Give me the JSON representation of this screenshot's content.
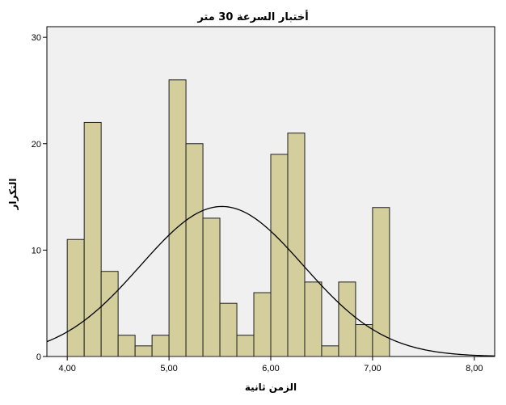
{
  "chart_data": {
    "type": "bar",
    "title": "أختبار السرعة 30 متر",
    "xlabel": "الزمن   ثانية",
    "ylabel": "التكرار",
    "xlim": [
      3.8,
      8.2
    ],
    "ylim": [
      0,
      31
    ],
    "x_ticks": [
      {
        "value": 4.0,
        "label": "4,00"
      },
      {
        "value": 5.0,
        "label": "5,00"
      },
      {
        "value": 6.0,
        "label": "6,00"
      },
      {
        "value": 7.0,
        "label": "7,00"
      },
      {
        "value": 8.0,
        "label": "8,00"
      }
    ],
    "y_ticks": [
      {
        "value": 0,
        "label": "0"
      },
      {
        "value": 10,
        "label": "10"
      },
      {
        "value": 20,
        "label": "20"
      },
      {
        "value": 30,
        "label": "30"
      }
    ],
    "bin_width": 0.1667,
    "bins": [
      {
        "start": 4.0,
        "value": 11
      },
      {
        "start": 4.1667,
        "value": 22
      },
      {
        "start": 4.3333,
        "value": 8
      },
      {
        "start": 4.5,
        "value": 2
      },
      {
        "start": 4.6667,
        "value": 1
      },
      {
        "start": 4.8333,
        "value": 2
      },
      {
        "start": 5.0,
        "value": 26
      },
      {
        "start": 5.1667,
        "value": 20
      },
      {
        "start": 5.3333,
        "value": 13
      },
      {
        "start": 5.5,
        "value": 5
      },
      {
        "start": 5.6667,
        "value": 2
      },
      {
        "start": 5.8333,
        "value": 6
      },
      {
        "start": 6.0,
        "value": 19
      },
      {
        "start": 6.1667,
        "value": 21
      },
      {
        "start": 6.3333,
        "value": 7
      },
      {
        "start": 6.5,
        "value": 1
      },
      {
        "start": 6.6667,
        "value": 7
      },
      {
        "start": 6.8333,
        "value": 3
      },
      {
        "start": 7.0,
        "value": 14
      }
    ],
    "normal_curve": {
      "mean": 5.52,
      "std": 0.8,
      "peak": 14.1
    },
    "grid": false,
    "colors": {
      "plot_background": "#f0f0f0",
      "bar_fill": "#d3ce9b",
      "bar_stroke": "#202020",
      "curve": "#000000"
    }
  }
}
